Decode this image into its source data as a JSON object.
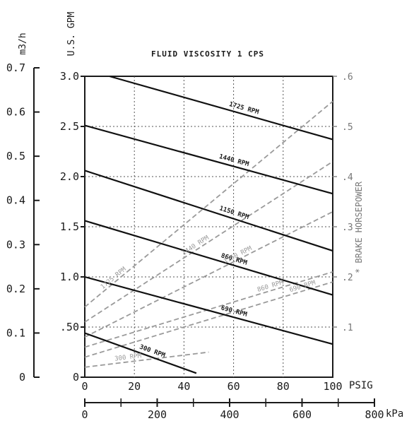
{
  "chart_data": {
    "type": "line",
    "title": "FLUID VISCOSITY 1 CPS",
    "x_axis": {
      "label": "PSIG",
      "range": [
        0,
        100
      ],
      "ticks": [
        "0",
        "20",
        "40",
        "60",
        "80",
        "100"
      ],
      "secondary": {
        "label": "kPa",
        "range": [
          0,
          800
        ],
        "ticks": [
          "0",
          "200",
          "400",
          "600",
          "800"
        ]
      }
    },
    "y_axis": {
      "label": "U.S. GPM",
      "range": [
        0,
        3.0
      ],
      "ticks": [
        "0",
        ".50",
        "1.0",
        "1.5",
        "2.0",
        "2.5",
        "3.0"
      ],
      "secondary": {
        "label": "m3/h",
        "range": [
          0,
          0.7
        ],
        "ticks": [
          "0",
          "0.1",
          "0.2",
          "0.3",
          "0.4",
          "0.5",
          "0.6",
          "0.7"
        ]
      }
    },
    "y2_axis": {
      "label": "* BRAKE HORSEPOWER",
      "range": [
        0,
        0.6
      ],
      "ticks": [
        ".1",
        ".2",
        ".3",
        ".4",
        ".5",
        ".6"
      ]
    },
    "grid": true,
    "flow_series": [
      {
        "name": "1725 RPM",
        "x": [
          10,
          100
        ],
        "y": [
          3.0,
          2.37
        ]
      },
      {
        "name": "1440 RPM",
        "x": [
          0,
          100
        ],
        "y": [
          2.51,
          1.83
        ]
      },
      {
        "name": "1150 RPM",
        "x": [
          0,
          100
        ],
        "y": [
          2.06,
          1.26
        ]
      },
      {
        "name": "860 RPM",
        "x": [
          0,
          100
        ],
        "y": [
          1.56,
          0.82
        ]
      },
      {
        "name": "690 RPM",
        "x": [
          0,
          100
        ],
        "y": [
          1.0,
          0.33
        ]
      },
      {
        "name": "300 RPM",
        "x": [
          0,
          45
        ],
        "y": [
          0.44,
          0.04
        ]
      }
    ],
    "horsepower_series": [
      {
        "name": "1725 RPM",
        "x": [
          0,
          100
        ],
        "hp": [
          0.14,
          0.55
        ]
      },
      {
        "name": "1440 RPM",
        "x": [
          0,
          100
        ],
        "hp": [
          0.11,
          0.43
        ]
      },
      {
        "name": "1150 RPM",
        "x": [
          0,
          100
        ],
        "hp": [
          0.08,
          0.33
        ]
      },
      {
        "name": "860 RPM",
        "x": [
          0,
          100
        ],
        "hp": [
          0.06,
          0.21
        ]
      },
      {
        "name": "690 RPM",
        "x": [
          0,
          100
        ],
        "hp": [
          0.04,
          0.19
        ]
      },
      {
        "name": "300 RPM",
        "x": [
          0,
          50
        ],
        "hp": [
          0.02,
          0.05
        ]
      }
    ]
  }
}
